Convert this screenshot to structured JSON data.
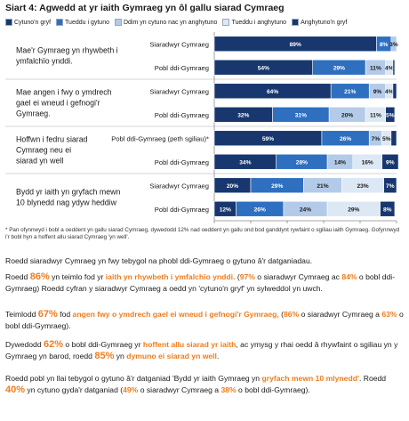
{
  "figure": {
    "title": "Siart 4: Agwedd at yr iaith Gymraeg yn ôl gallu siarad Cymraeg",
    "footnote": "* Pan ofynnwyd i bobl a oeddent yn gallu siarad Cymraeg, dywedodd 12% nad oeddent yn gallu ond bod ganddynt rywfaint o sgiliau iaith Gymraeg. Gofynnwyd i'r bobl hyn a hoffent allu siarad Cymraeg 'yn well'."
  },
  "chart_data": {
    "type": "bar",
    "orientation": "horizontal",
    "stacked": true,
    "xlim": [
      0,
      100
    ],
    "xticks": [
      "0%",
      "20%",
      "40%",
      "60%",
      "80%",
      "100%"
    ],
    "grid": false,
    "legend_position": "top",
    "series": [
      {
        "name": "Cytuno'n gryf",
        "color": "#ffffff"
      },
      {
        "name": "Tueddu i gytuno",
        "color": "#ffffff"
      },
      {
        "name": "Ddim yn cytuno nac yn anghytuno",
        "color": "#ffffff"
      },
      {
        "name": "Tueddu i anghytuno",
        "color": "#ffffff"
      },
      {
        "name": "Anghytuno'n gryf",
        "color": "#ffffff"
      }
    ],
    "groups": [
      {
        "label": "Mae'r Gymraeg yn rhywbeth i ymfalchïo ynddi.",
        "label_lines": [
          "Mae'r Gymraeg yn rhywbeth i",
          "ymfalchïo ynddi."
        ]
      },
      {
        "label": "Mae angen i fwy o ymdrech gael ei wneud i gefnogi'r Gymraeg.",
        "label_lines": [
          "Mae angen i fwy o ymdrech",
          "gael ei wneud i gefnogi'r",
          "Gymraeg."
        ]
      },
      {
        "label": "Hoffwn i fedru siarad Cymraeg neu ei siarad yn well",
        "label_lines": [
          "Hoffwn i fedru siarad",
          "Cymraeg neu ei",
          "siarad yn well"
        ]
      },
      {
        "label": "Bydd yr iaith yn gryfach mewn 10 blynedd nag ydyw heddiw",
        "label_lines": [
          "Bydd yr iaith yn gryfach mewn",
          "10 blynedd nag ydyw heddiw"
        ]
      }
    ],
    "rows": [
      {
        "group": 0,
        "category": "Siaradwyr Cymraeg",
        "values": [
          89,
          8,
          3,
          0,
          0
        ],
        "labels": [
          "89%",
          "8%",
          "3%",
          "",
          ""
        ]
      },
      {
        "group": 0,
        "category": "Pobl ddi-Gymraeg",
        "values": [
          54,
          29,
          11,
          4,
          1
        ],
        "labels": [
          "54%",
          "29%",
          "11%",
          "4%",
          ""
        ]
      },
      {
        "group": 1,
        "category": "Siaradwyr Cymraeg",
        "values": [
          64,
          21,
          9,
          4,
          2
        ],
        "labels": [
          "64%",
          "21%",
          "9%",
          "4%",
          ""
        ]
      },
      {
        "group": 1,
        "category": "Pobl ddi-Gymraeg",
        "values": [
          32,
          31,
          20,
          11,
          5
        ],
        "labels": [
          "32%",
          "31%",
          "20%",
          "11%",
          "5%"
        ]
      },
      {
        "group": 2,
        "category": "Pobl ddi-Gymraeg (peth sgiliau)*",
        "values": [
          59,
          26,
          7,
          5,
          3
        ],
        "labels": [
          "59%",
          "26%",
          "7%",
          "5%",
          ""
        ]
      },
      {
        "group": 2,
        "category": "Pobl ddi-Gymraeg",
        "values": [
          34,
          28,
          14,
          16,
          9
        ],
        "labels": [
          "34%",
          "28%",
          "14%",
          "16%",
          "9%"
        ]
      },
      {
        "group": 3,
        "category": "Siaradwyr Cymraeg",
        "values": [
          20,
          29,
          21,
          23,
          7
        ],
        "labels": [
          "20%",
          "29%",
          "21%",
          "23%",
          "7%"
        ]
      },
      {
        "group": 3,
        "category": "Pobl ddi-Gymraeg",
        "values": [
          12,
          26,
          24,
          29,
          8
        ],
        "labels": [
          "12%",
          "26%",
          "24%",
          "29%",
          "8%"
        ]
      }
    ],
    "colors": [
      "#17376e",
      "#2e6fc0",
      "#b3cbe8",
      "#dde8f5",
      "#17376e"
    ],
    "label_colors": [
      "#ffffff",
      "#ffffff",
      "#1a1a1a",
      "#1a1a1a",
      "#ffffff"
    ]
  },
  "paragraphs": {
    "p1": {
      "text": "Roedd siaradwyr Cymraeg yn fwy tebygol na phobl ddi-Gymraeg o gytuno â'r datganiadau."
    },
    "p2": {
      "a": "Roedd ",
      "b": "86%",
      "c": " yn teimlo fod yr ",
      "d": "iaith yn rhywbeth i ymfalchïo ynddi.",
      "e": " (",
      "f": "97%",
      "g": " o siaradwyr Cymraeg ac ",
      "h": "84%",
      "i": " o bobl ddi-Gymraeg) Roedd cyfran y siaradwyr Cymraeg a oedd yn 'cytuno'n gryf' yn sylweddol yn uwch."
    },
    "p3": {
      "a": "Teimlodd ",
      "b": "67%",
      "c": " fod ",
      "d": "angen fwy o ymdrech gael ei wneud i gefnogi'r Gymraeg,",
      "e": " (",
      "f": "86%",
      "g": " o siaradwyr Cymraeg a ",
      "h": "63%",
      "i": " o bobl ddi-Gymraeg)."
    },
    "p4": {
      "a": "Dywedodd ",
      "b": "62%",
      "c": " o bobl ddi-Gymraeg yr ",
      "d": "hoffent allu siarad yr iaith",
      "e": ", ac ymysg y rhai oedd â rhywfaint o sgiliau yn y Gymraeg yn barod, roedd ",
      "f": "85%",
      "g": " yn ",
      "h": "dymuno ei siarad yn well",
      "i": "."
    },
    "p5": {
      "a": "Roedd pobl yn llai tebygol o gytuno â'r datganiad 'Bydd yr iaith Gymraeg yn ",
      "b": "gryfach mewn 10 mlynedd'",
      "c": ". Roedd ",
      "d": "40%",
      "e": " yn cytuno gyda'r datganiad (",
      "f": "49%",
      "g": " o siaradwyr Cymraeg a ",
      "h": "38%",
      "i": " o bobl ddi-Gymraeg)."
    }
  }
}
